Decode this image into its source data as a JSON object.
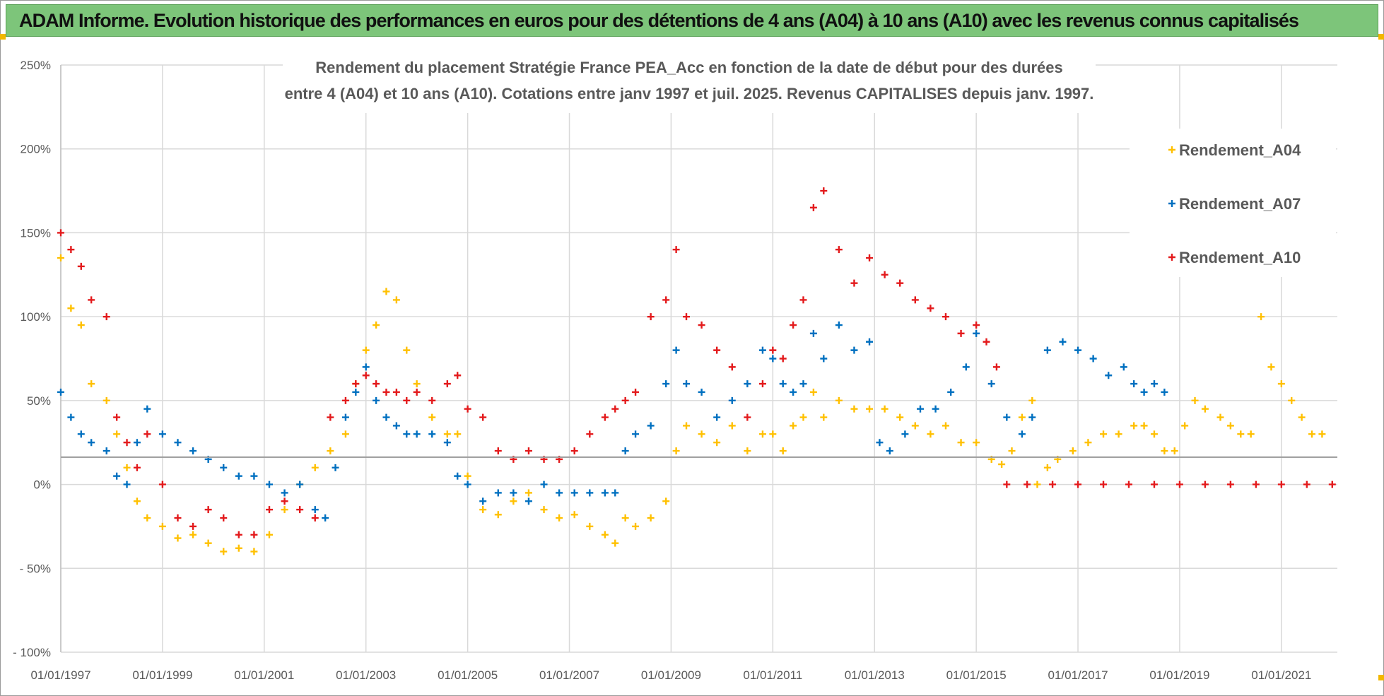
{
  "header": {
    "banner": "ADAM Informe. Evolution historique des performances en euros pour des détentions de 4 ans (A04) à 10 ans (A10) avec les revenus connus capitalisés"
  },
  "chart_data": {
    "type": "scatter",
    "title_line1": "Rendement du placement Stratégie France PEA_Acc en fonction de la date de début pour des durées",
    "title_line2": "entre 4 (A04) et 10 ans (A10).  Cotations entre janv 1997 et juil. 2025. Revenus CAPITALISES depuis janv. 1997.",
    "xlabel": "",
    "ylabel": "",
    "ylim": [
      -100,
      250
    ],
    "xlim": [
      1997.0,
      2022.1
    ],
    "y_ticks": [
      "250%",
      "200%",
      "150%",
      "100%",
      "50%",
      "0%",
      "- 50%",
      "- 100%"
    ],
    "x_ticks": [
      "01/01/1997",
      "01/01/1999",
      "01/01/2001",
      "01/01/2003",
      "01/01/2005",
      "01/01/2007",
      "01/01/2009",
      "01/01/2011",
      "01/01/2013",
      "01/01/2015",
      "01/01/2017",
      "01/01/2019",
      "01/01/2021"
    ],
    "grid": true,
    "legend_position": "top-right",
    "marker": "+",
    "series": [
      {
        "name": "Rendement_A04",
        "color": "#ffc000",
        "x": [
          1997.0,
          1997.2,
          1997.4,
          1997.6,
          1997.9,
          1998.1,
          1998.3,
          1998.5,
          1998.7,
          1999.0,
          1999.3,
          1999.6,
          1999.9,
          2000.2,
          2000.5,
          2000.8,
          2001.1,
          2001.4,
          2001.7,
          2002.0,
          2002.3,
          2002.6,
          2002.8,
          2003.0,
          2003.2,
          2003.4,
          2003.6,
          2003.8,
          2004.0,
          2004.3,
          2004.6,
          2004.8,
          2005.0,
          2005.3,
          2005.6,
          2005.9,
          2006.2,
          2006.5,
          2006.8,
          2007.1,
          2007.4,
          2007.7,
          2007.9,
          2008.1,
          2008.3,
          2008.6,
          2008.9,
          2009.1,
          2009.3,
          2009.6,
          2009.9,
          2010.2,
          2010.5,
          2010.8,
          2011.0,
          2011.2,
          2011.4,
          2011.6,
          2011.8,
          2012.0,
          2012.3,
          2012.6,
          2012.9,
          2013.2,
          2013.5,
          2013.8,
          2014.1,
          2014.4,
          2014.7,
          2015.0,
          2015.3,
          2015.5,
          2015.7,
          2015.9,
          2016.1,
          2016.2,
          2016.4,
          2016.6,
          2016.9,
          2017.2,
          2017.5,
          2017.8,
          2018.1,
          2018.3,
          2018.5,
          2018.7,
          2018.9,
          2019.1,
          2019.3,
          2019.5,
          2019.8,
          2020.0,
          2020.2,
          2020.4,
          2020.6,
          2020.8,
          2021.0,
          2021.2,
          2021.4,
          2021.6,
          2021.8
        ],
        "values": [
          135,
          105,
          95,
          60,
          50,
          30,
          10,
          -10,
          -20,
          -25,
          -32,
          -30,
          -35,
          -40,
          -38,
          -40,
          -30,
          -15,
          0,
          10,
          20,
          30,
          60,
          80,
          95,
          115,
          110,
          80,
          60,
          40,
          30,
          30,
          5,
          -15,
          -18,
          -10,
          -5,
          -15,
          -20,
          -18,
          -25,
          -30,
          -35,
          -20,
          -25,
          -20,
          -10,
          20,
          35,
          30,
          25,
          35,
          20,
          30,
          30,
          20,
          35,
          40,
          55,
          40,
          50,
          45,
          45,
          45,
          40,
          35,
          30,
          35,
          25,
          25,
          15,
          12,
          20,
          40,
          50,
          0,
          10,
          15,
          20,
          25,
          30,
          30,
          35,
          35,
          30,
          20,
          20,
          35,
          50,
          45,
          40,
          35,
          30,
          30,
          100,
          70,
          60,
          50,
          40,
          30,
          30
        ]
      },
      {
        "name": "Rendement_A07",
        "color": "#0070c0",
        "x": [
          1997.0,
          1997.2,
          1997.4,
          1997.6,
          1997.9,
          1998.1,
          1998.3,
          1998.5,
          1998.7,
          1999.0,
          1999.3,
          1999.6,
          1999.9,
          2000.2,
          2000.5,
          2000.8,
          2001.1,
          2001.4,
          2001.7,
          2002.0,
          2002.2,
          2002.4,
          2002.6,
          2002.8,
          2003.0,
          2003.2,
          2003.4,
          2003.6,
          2003.8,
          2004.0,
          2004.3,
          2004.6,
          2004.8,
          2005.0,
          2005.3,
          2005.6,
          2005.9,
          2006.2,
          2006.5,
          2006.8,
          2007.1,
          2007.4,
          2007.7,
          2007.9,
          2008.1,
          2008.3,
          2008.6,
          2008.9,
          2009.1,
          2009.3,
          2009.6,
          2009.9,
          2010.2,
          2010.5,
          2010.8,
          2011.0,
          2011.2,
          2011.4,
          2011.6,
          2011.8,
          2012.0,
          2012.3,
          2012.6,
          2012.9,
          2013.1,
          2013.3,
          2013.6,
          2013.9,
          2014.2,
          2014.5,
          2014.8,
          2015.0,
          2015.3,
          2015.6,
          2015.9,
          2016.1,
          2016.4,
          2016.7,
          2017.0,
          2017.3,
          2017.6,
          2017.9,
          2018.1,
          2018.3,
          2018.5,
          2018.7
        ],
        "values": [
          55,
          40,
          30,
          25,
          20,
          5,
          0,
          25,
          45,
          30,
          25,
          20,
          15,
          10,
          5,
          5,
          0,
          -5,
          0,
          -15,
          -20,
          10,
          40,
          55,
          70,
          50,
          40,
          35,
          30,
          30,
          30,
          25,
          5,
          0,
          -10,
          -5,
          -5,
          -10,
          0,
          -5,
          -5,
          -5,
          -5,
          -5,
          20,
          30,
          35,
          60,
          80,
          60,
          55,
          40,
          50,
          60,
          80,
          75,
          60,
          55,
          60,
          90,
          75,
          95,
          80,
          85,
          25,
          20,
          30,
          45,
          45,
          55,
          70,
          90,
          60,
          40,
          30,
          40,
          80,
          85,
          80,
          75,
          65,
          70,
          60,
          55,
          60,
          55
        ]
      },
      {
        "name": "Rendement_A10",
        "color": "#e31a1c",
        "x": [
          1997.0,
          1997.2,
          1997.4,
          1997.6,
          1997.9,
          1998.1,
          1998.3,
          1998.5,
          1998.7,
          1999.0,
          1999.3,
          1999.6,
          1999.9,
          2000.2,
          2000.5,
          2000.8,
          2001.1,
          2001.4,
          2001.7,
          2002.0,
          2002.3,
          2002.6,
          2002.8,
          2003.0,
          2003.2,
          2003.4,
          2003.6,
          2003.8,
          2004.0,
          2004.3,
          2004.6,
          2004.8,
          2005.0,
          2005.3,
          2005.6,
          2005.9,
          2006.2,
          2006.5,
          2006.8,
          2007.1,
          2007.4,
          2007.7,
          2007.9,
          2008.1,
          2008.3,
          2008.6,
          2008.9,
          2009.1,
          2009.3,
          2009.6,
          2009.9,
          2010.2,
          2010.5,
          2010.8,
          2011.0,
          2011.2,
          2011.4,
          2011.6,
          2011.8,
          2012.0,
          2012.3,
          2012.6,
          2012.9,
          2013.2,
          2013.5,
          2013.8,
          2014.1,
          2014.4,
          2014.7,
          2015.0,
          2015.2,
          2015.4,
          2015.6,
          2016.0,
          2016.5,
          2017.0,
          2017.5,
          2018.0,
          2018.5,
          2019.0,
          2019.5,
          2020.0,
          2020.5,
          2021.0,
          2021.5,
          2022.0
        ],
        "values": [
          150,
          140,
          130,
          110,
          100,
          40,
          25,
          10,
          30,
          0,
          -20,
          -25,
          -15,
          -20,
          -30,
          -30,
          -15,
          -10,
          -15,
          -20,
          40,
          50,
          60,
          65,
          60,
          55,
          55,
          50,
          55,
          50,
          60,
          65,
          45,
          40,
          20,
          15,
          20,
          15,
          15,
          20,
          30,
          40,
          45,
          50,
          55,
          100,
          110,
          140,
          100,
          95,
          80,
          70,
          40,
          60,
          80,
          75,
          95,
          110,
          165,
          175,
          140,
          120,
          135,
          125,
          120,
          110,
          105,
          100,
          90,
          95,
          85,
          70,
          0,
          0,
          0,
          0,
          0,
          0,
          0,
          0,
          0,
          0,
          0,
          0,
          0,
          0
        ]
      }
    ]
  }
}
